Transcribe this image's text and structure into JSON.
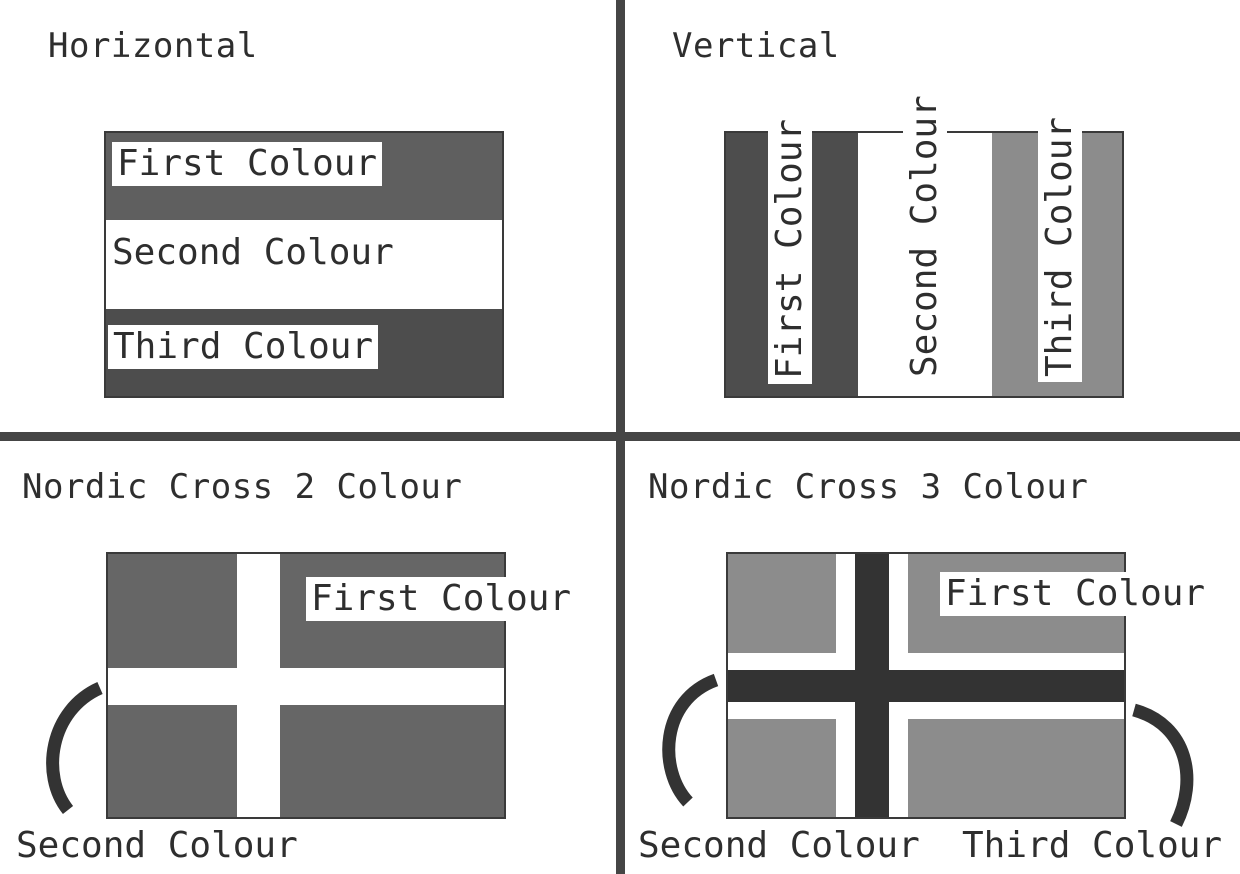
{
  "panels": {
    "horizontal": {
      "title": "Horizontal",
      "labels": {
        "first": "First Colour",
        "second": "Second Colour",
        "third": "Third Colour"
      }
    },
    "vertical": {
      "title": "Vertical",
      "labels": {
        "first": "First Colour",
        "second": "Second Colour",
        "third": "Third Colour"
      }
    },
    "nordic2": {
      "title": "Nordic Cross 2 Colour",
      "labels": {
        "first": "First Colour",
        "second": "Second Colour"
      }
    },
    "nordic3": {
      "title": "Nordic Cross 3 Colour",
      "labels": {
        "first": "First Colour",
        "second": "Second Colour",
        "third": "Third Colour"
      }
    }
  },
  "colors": {
    "divider": "#454545",
    "dark": "#4d4d4d",
    "mid": "#666666",
    "light": "#8c8c8c",
    "darkest": "#333333",
    "white": "#ffffff"
  }
}
